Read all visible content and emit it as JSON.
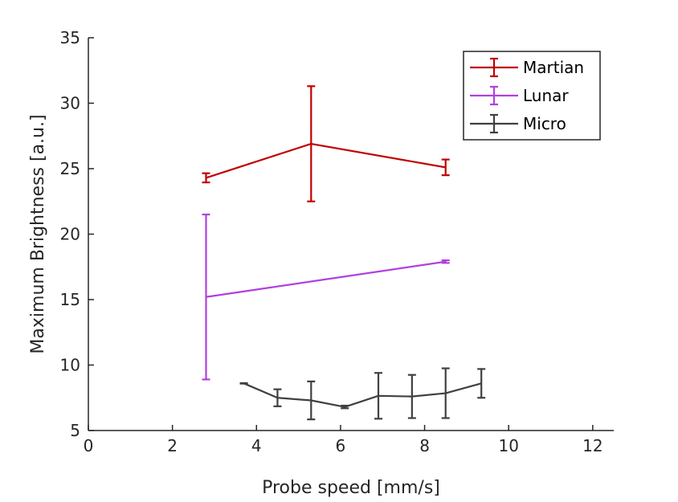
{
  "chart_data": {
    "type": "line",
    "xlabel": "Probe speed [mm/s]",
    "ylabel": "Maximum Brightness [a.u.]",
    "xlim": [
      0,
      12.5
    ],
    "ylim": [
      5,
      35
    ],
    "xticks": [
      "0",
      "2",
      "4",
      "6",
      "8",
      "10",
      "12"
    ],
    "yticks": [
      "5",
      "10",
      "15",
      "20",
      "25",
      "30",
      "35"
    ],
    "grid": false,
    "legend_position": "top-right",
    "series": [
      {
        "name": "Martian",
        "color": "#c00000",
        "x": [
          2.8,
          5.3,
          8.5
        ],
        "y": [
          24.3,
          26.9,
          25.1
        ],
        "err": [
          0.35,
          4.4,
          0.6
        ]
      },
      {
        "name": "Lunar",
        "color": "#b040e0",
        "x": [
          2.8,
          8.5
        ],
        "y": [
          15.2,
          17.9
        ],
        "err": [
          6.3,
          0.1
        ]
      },
      {
        "name": "Micro",
        "color": "#404040",
        "x": [
          3.7,
          4.5,
          5.3,
          6.1,
          6.9,
          7.7,
          8.5,
          9.35
        ],
        "y": [
          8.6,
          7.5,
          7.3,
          6.8,
          7.65,
          7.6,
          7.85,
          8.6
        ],
        "err": [
          0.02,
          0.65,
          1.45,
          0.1,
          1.75,
          1.65,
          1.9,
          1.1
        ]
      }
    ]
  }
}
